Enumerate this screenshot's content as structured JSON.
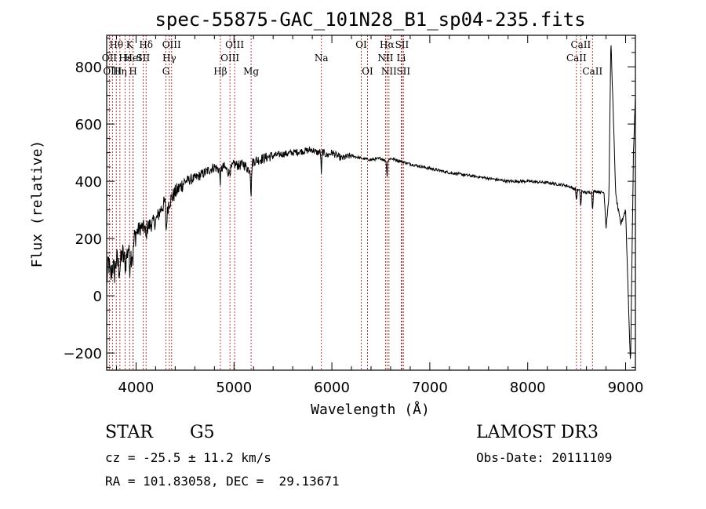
{
  "chart_data": {
    "type": "line",
    "title": "spec-55875-GAC_101N28_B1_sp04-235.fits",
    "xlabel": "Wavelength (Å)",
    "ylabel": "Flux (relative)",
    "xlim": [
      3700,
      9100
    ],
    "ylim": [
      -260,
      910
    ],
    "xticks": [
      4000,
      5000,
      6000,
      7000,
      8000,
      9000
    ],
    "yticks": [
      -200,
      0,
      200,
      400,
      600,
      800
    ],
    "line_color": "#000000",
    "marker_color": "#b22222",
    "lines": [
      {
        "name": "Hθ",
        "wave": 3798,
        "row": 0
      },
      {
        "name": "OII",
        "wave": 3727,
        "row": 1
      },
      {
        "name": "OIII",
        "wave": 3759,
        "row": 2
      },
      {
        "name": "K",
        "wave": 3934,
        "row": 0
      },
      {
        "name": "Hε",
        "wave": 3889,
        "row": 1
      },
      {
        "name": "Hη",
        "wave": 3835,
        "row": 2
      },
      {
        "name": "Hδ",
        "wave": 4102,
        "row": 0
      },
      {
        "name": "HeI",
        "wave": 3970,
        "row": 1
      },
      {
        "name": "H",
        "wave": 3969,
        "row": 2
      },
      {
        "name": "SII",
        "wave": 4072,
        "row": 1
      },
      {
        "name": "OIII",
        "wave": 4363,
        "row": 0
      },
      {
        "name": "Hγ",
        "wave": 4340,
        "row": 1
      },
      {
        "name": "G",
        "wave": 4305,
        "row": 2
      },
      {
        "name": "Hβ",
        "wave": 4861,
        "row": 2
      },
      {
        "name": "OIII",
        "wave": 5007,
        "row": 0
      },
      {
        "name": "OIII",
        "wave": 4959,
        "row": 1
      },
      {
        "name": "Mg",
        "wave": 5175,
        "row": 2
      },
      {
        "name": "Na",
        "wave": 5893,
        "row": 1
      },
      {
        "name": "OI",
        "wave": 6300,
        "row": 0
      },
      {
        "name": "OI",
        "wave": 6364,
        "row": 2
      },
      {
        "name": "Hα",
        "wave": 6563,
        "row": 0
      },
      {
        "name": "NII",
        "wave": 6548,
        "row": 1
      },
      {
        "name": "NII",
        "wave": 6583,
        "row": 2
      },
      {
        "name": "SII",
        "wave": 6716,
        "row": 0
      },
      {
        "name": "Li",
        "wave": 6708,
        "row": 1
      },
      {
        "name": "SII",
        "wave": 6731,
        "row": 2
      },
      {
        "name": "CaII",
        "wave": 8542,
        "row": 0
      },
      {
        "name": "CaII",
        "wave": 8498,
        "row": 1
      },
      {
        "name": "CaII",
        "wave": 8662,
        "row": 2
      }
    ],
    "spectrum": {
      "anchors_x": [
        3700,
        3720,
        3740,
        3760,
        3780,
        3800,
        3830,
        3860,
        3890,
        3920,
        3950,
        3970,
        4000,
        4050,
        4100,
        4150,
        4200,
        4250,
        4300,
        4310,
        4330,
        4360,
        4400,
        4450,
        4500,
        4600,
        4700,
        4800,
        4850,
        4900,
        4950,
        5000,
        5050,
        5100,
        5150,
        5200,
        5300,
        5400,
        5500,
        5600,
        5700,
        5800,
        5850,
        5900,
        5950,
        6000,
        6100,
        6200,
        6300,
        6400,
        6500,
        6560,
        6600,
        6700,
        6800,
        7000,
        7200,
        7400,
        7600,
        7800,
        8000,
        8200,
        8400,
        8500,
        8600,
        8700,
        8780,
        8800,
        8830,
        8850,
        8900,
        8950,
        9000,
        9050,
        9080,
        9100
      ],
      "anchors_y": [
        50,
        120,
        60,
        110,
        80,
        130,
        90,
        150,
        110,
        170,
        140,
        180,
        220,
        240,
        235,
        250,
        260,
        300,
        330,
        260,
        320,
        340,
        360,
        380,
        400,
        410,
        430,
        450,
        440,
        450,
        430,
        460,
        455,
        460,
        440,
        470,
        480,
        490,
        495,
        500,
        505,
        510,
        500,
        505,
        490,
        500,
        480,
        490,
        480,
        475,
        480,
        470,
        480,
        470,
        460,
        445,
        430,
        420,
        410,
        400,
        400,
        395,
        385,
        370,
        360,
        365,
        360,
        240,
        350,
        900,
        350,
        250,
        300,
        -250,
        500,
        700
      ],
      "dips": [
        {
          "wave": 3934,
          "depth": 60
        },
        {
          "wave": 3969,
          "depth": 50
        },
        {
          "wave": 4102,
          "depth": 40
        },
        {
          "wave": 4305,
          "depth": 60
        },
        {
          "wave": 4861,
          "depth": 45
        },
        {
          "wave": 5175,
          "depth": 110
        },
        {
          "wave": 5893,
          "depth": 80
        },
        {
          "wave": 6563,
          "depth": 55
        },
        {
          "wave": 8498,
          "depth": 40
        },
        {
          "wave": 8542,
          "depth": 60
        },
        {
          "wave": 8662,
          "depth": 65
        }
      ]
    }
  },
  "info": {
    "class_label": "STAR",
    "subclass": "G5",
    "survey": "LAMOST DR3",
    "cz": "cz = -25.5 ± 11.2 km/s",
    "obs_date": "Obs-Date: 20111109",
    "coords": "RA = 101.83058, DEC =  29.13671"
  }
}
